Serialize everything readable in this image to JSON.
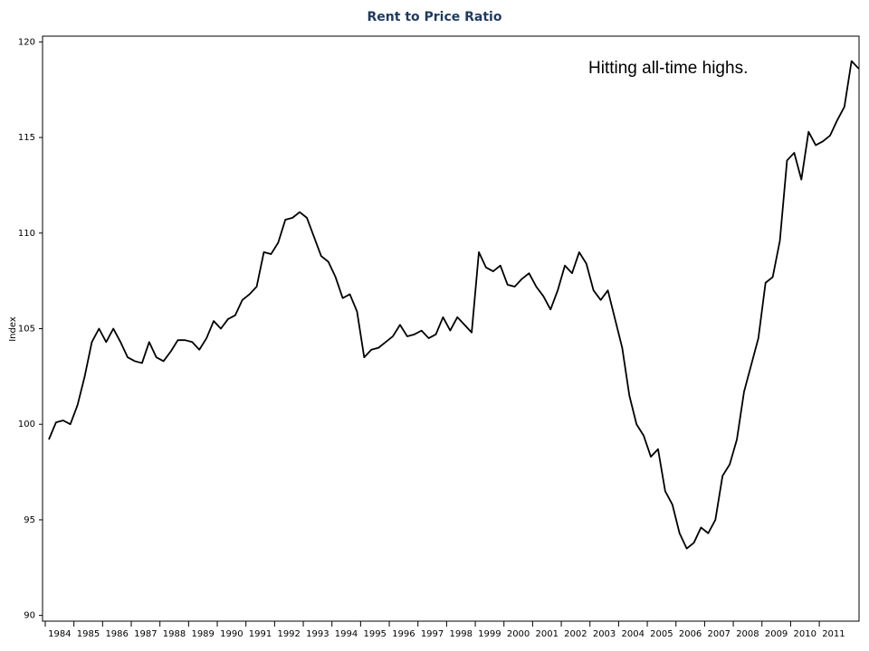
{
  "chart_data": {
    "type": "line",
    "title": "Rent to Price Ratio",
    "y_label": "Index",
    "annotation": "Hitting all-time highs.",
    "color": "#000000",
    "categories": [
      "1984",
      null,
      null,
      null,
      "1985",
      null,
      null,
      null,
      "1986",
      null,
      null,
      null,
      "1987",
      null,
      null,
      null,
      "1988",
      null,
      null,
      null,
      "1989",
      null,
      null,
      null,
      "1990",
      null,
      null,
      null,
      "1991",
      null,
      null,
      null,
      "1992",
      null,
      null,
      null,
      "1993",
      null,
      null,
      null,
      "1994",
      null,
      null,
      null,
      "1995",
      null,
      null,
      null,
      "1996",
      null,
      null,
      null,
      "1997",
      null,
      null,
      null,
      "1998",
      null,
      null,
      null,
      "1999",
      null,
      null,
      null,
      "2000",
      null,
      null,
      null,
      "2001",
      null,
      null,
      null,
      "2002",
      null,
      null,
      null,
      "2003",
      null,
      null,
      null,
      "2004",
      null,
      null,
      null,
      "2005",
      null,
      null,
      null,
      "2006",
      null,
      null,
      null,
      "2007",
      null,
      null,
      null,
      "2008",
      null,
      null,
      null,
      "2009",
      null,
      null,
      null,
      "2010",
      null,
      null,
      null,
      "2011",
      null,
      null,
      null,
      null,
      null
    ],
    "values": [
      99.2,
      100.1,
      100.2,
      100.0,
      101.0,
      102.5,
      104.3,
      105.0,
      104.3,
      105.0,
      104.3,
      103.5,
      103.3,
      103.2,
      104.3,
      103.5,
      103.3,
      103.8,
      104.4,
      104.4,
      104.3,
      103.9,
      104.5,
      105.4,
      105.0,
      105.5,
      105.7,
      106.5,
      106.8,
      107.2,
      109.0,
      108.9,
      109.5,
      110.7,
      110.8,
      111.1,
      110.8,
      109.8,
      108.8,
      108.5,
      107.7,
      106.6,
      106.8,
      105.9,
      103.5,
      103.9,
      104.0,
      104.3,
      104.6,
      105.2,
      104.6,
      104.7,
      104.9,
      104.5,
      104.7,
      105.6,
      104.9,
      105.6,
      105.2,
      104.8,
      109.0,
      108.2,
      108.0,
      108.3,
      107.3,
      107.2,
      107.6,
      107.9,
      107.2,
      106.7,
      106.0,
      107.0,
      108.3,
      107.9,
      109.0,
      108.4,
      107.0,
      106.5,
      107.0,
      105.5,
      104.0,
      101.5,
      100.0,
      99.4,
      98.3,
      98.7,
      96.5,
      95.8,
      94.3,
      93.5,
      93.8,
      94.6,
      94.3,
      95.0,
      97.3,
      97.9,
      99.2,
      101.7,
      103.1,
      104.5,
      107.4,
      107.7,
      109.6,
      113.8,
      114.2,
      112.8,
      115.3,
      114.6,
      114.8,
      115.1,
      115.9,
      116.6,
      119.0,
      118.6
    ],
    "ylim": [
      89.7,
      120.3
    ],
    "yticks": [
      90,
      95,
      100,
      105,
      110,
      115,
      120
    ]
  }
}
